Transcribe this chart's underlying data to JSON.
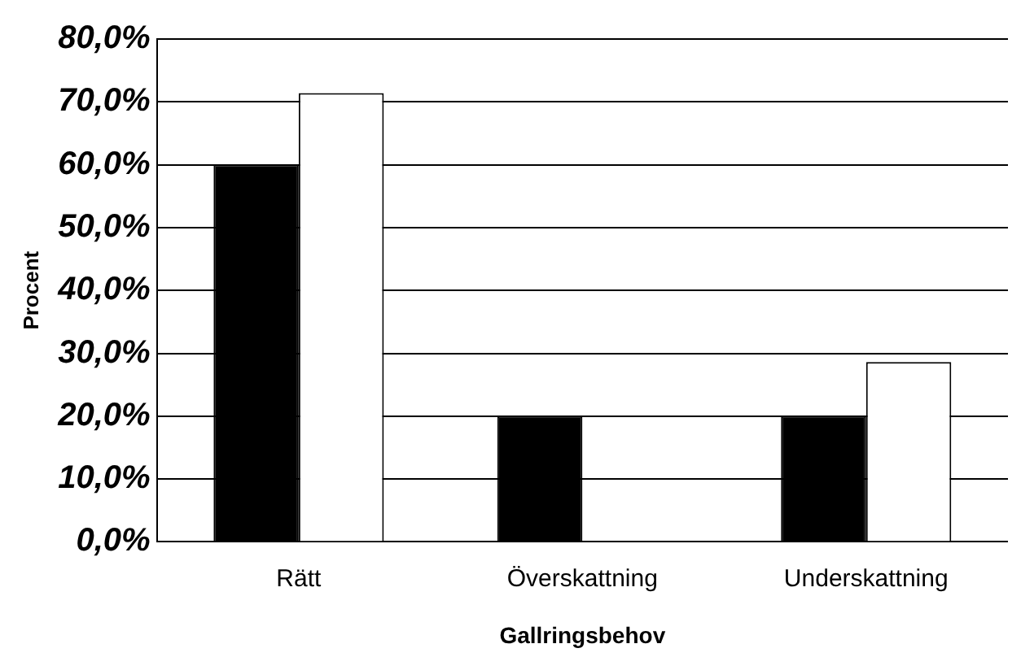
{
  "chart_data": {
    "type": "bar",
    "xlabel": "Gallringsbehov",
    "ylabel": "Procent",
    "categories": [
      "Rätt",
      "Överskattning",
      "Underskattning"
    ],
    "series": [
      {
        "color": "#000000",
        "values": [
          60.0,
          20.0,
          20.0
        ]
      },
      {
        "color": "#ffffff",
        "values": [
          71.4,
          0.0,
          28.6
        ]
      }
    ],
    "ylim": [
      0,
      80
    ],
    "yticks": [
      {
        "value": 0,
        "label": "0,0%"
      },
      {
        "value": 10,
        "label": "10,0%"
      },
      {
        "value": 20,
        "label": "20,0%"
      },
      {
        "value": 30,
        "label": "30,0%"
      },
      {
        "value": 40,
        "label": "40,0%"
      },
      {
        "value": 50,
        "label": "50,0%"
      },
      {
        "value": 60,
        "label": "60,0%"
      },
      {
        "value": 70,
        "label": "70,0%"
      },
      {
        "value": 80,
        "label": "80,0%"
      }
    ],
    "grid": "y",
    "legend": false
  }
}
